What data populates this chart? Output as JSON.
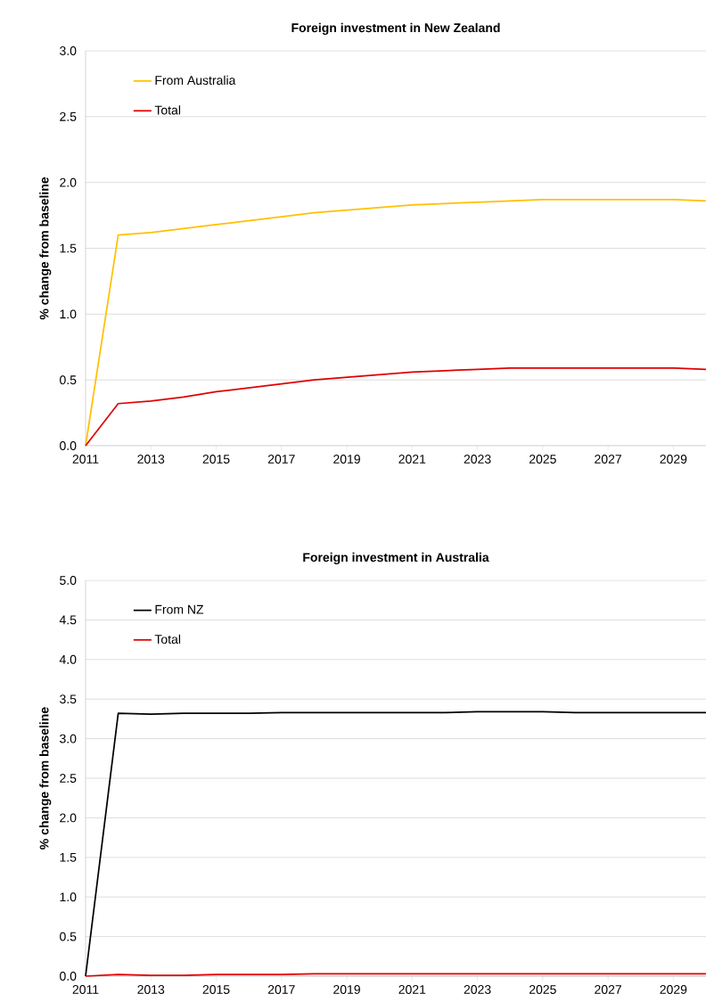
{
  "chart_data": [
    {
      "type": "line",
      "title": "Foreign investment in New Zealand",
      "ylabel": "% change from baseline",
      "x": [
        2011,
        2012,
        2013,
        2014,
        2015,
        2016,
        2017,
        2018,
        2019,
        2020,
        2021,
        2022,
        2023,
        2024,
        2025,
        2026,
        2027,
        2028,
        2029,
        2030
      ],
      "series": [
        {
          "name": "From Australia",
          "color": "#ffc000",
          "values": [
            0,
            1.6,
            1.62,
            1.65,
            1.68,
            1.71,
            1.74,
            1.77,
            1.79,
            1.81,
            1.83,
            1.84,
            1.85,
            1.86,
            1.87,
            1.87,
            1.87,
            1.87,
            1.87,
            1.86
          ]
        },
        {
          "name": "Total",
          "color": "#e00000",
          "values": [
            0,
            0.32,
            0.34,
            0.37,
            0.41,
            0.44,
            0.47,
            0.5,
            0.52,
            0.54,
            0.56,
            0.57,
            0.58,
            0.59,
            0.59,
            0.59,
            0.59,
            0.59,
            0.59,
            0.58
          ]
        }
      ],
      "xlim": [
        2011,
        2030
      ],
      "xticks": [
        2011,
        2013,
        2015,
        2017,
        2019,
        2021,
        2023,
        2025,
        2027,
        2029
      ],
      "ylim": [
        0,
        3
      ],
      "yticks": [
        {
          "value": 0,
          "label": "0.0"
        },
        {
          "value": 0.5,
          "label": "0.5"
        },
        {
          "value": 1,
          "label": "1.0"
        },
        {
          "value": 1.5,
          "label": "1.5"
        },
        {
          "value": 2,
          "label": "2.0"
        },
        {
          "value": 2.5,
          "label": "2.5"
        },
        {
          "value": 3,
          "label": "3.0"
        }
      ],
      "grid": "y",
      "legend": "top left"
    },
    {
      "type": "line",
      "title": "Foreign investment in Australia",
      "ylabel": "% change from baseline",
      "x": [
        2011,
        2012,
        2013,
        2014,
        2015,
        2016,
        2017,
        2018,
        2019,
        2020,
        2021,
        2022,
        2023,
        2024,
        2025,
        2026,
        2027,
        2028,
        2029,
        2030
      ],
      "series": [
        {
          "name": "From NZ",
          "color": "#000000",
          "values": [
            0,
            3.32,
            3.31,
            3.32,
            3.32,
            3.32,
            3.33,
            3.33,
            3.33,
            3.33,
            3.33,
            3.33,
            3.34,
            3.34,
            3.34,
            3.33,
            3.33,
            3.33,
            3.33,
            3.33
          ]
        },
        {
          "name": "Total",
          "color": "#e00000",
          "values": [
            0,
            0.02,
            0.01,
            0.01,
            0.02,
            0.02,
            0.02,
            0.03,
            0.03,
            0.03,
            0.03,
            0.03,
            0.03,
            0.03,
            0.03,
            0.03,
            0.03,
            0.03,
            0.03,
            0.03
          ]
        }
      ],
      "xlim": [
        2011,
        2030
      ],
      "xticks": [
        2011,
        2013,
        2015,
        2017,
        2019,
        2021,
        2023,
        2025,
        2027,
        2029
      ],
      "ylim": [
        0,
        5
      ],
      "yticks": [
        {
          "value": 0,
          "label": "0.0"
        },
        {
          "value": 0.5,
          "label": "0.5"
        },
        {
          "value": 1,
          "label": "1.0"
        },
        {
          "value": 1.5,
          "label": "1.5"
        },
        {
          "value": 2,
          "label": "2.0"
        },
        {
          "value": 2.5,
          "label": "2.5"
        },
        {
          "value": 3,
          "label": "3.0"
        },
        {
          "value": 3.5,
          "label": "3.5"
        },
        {
          "value": 4,
          "label": "4.0"
        },
        {
          "value": 4.5,
          "label": "4.5"
        },
        {
          "value": 5,
          "label": "5.0"
        }
      ],
      "grid": "y",
      "legend": "top left"
    }
  ]
}
